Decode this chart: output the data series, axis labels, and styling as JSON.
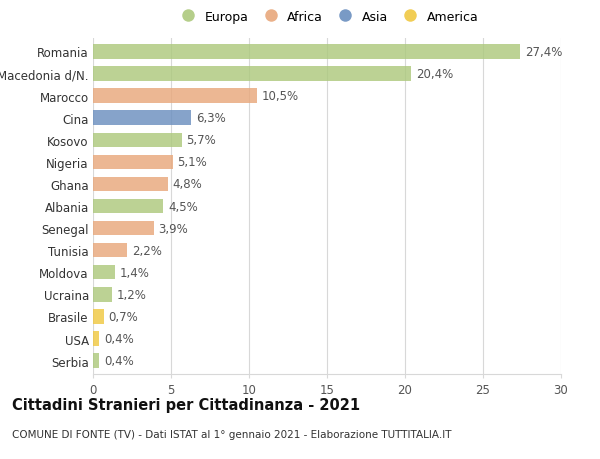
{
  "countries": [
    "Romania",
    "Macedonia d/N.",
    "Marocco",
    "Cina",
    "Kosovo",
    "Nigeria",
    "Ghana",
    "Albania",
    "Senegal",
    "Tunisia",
    "Moldova",
    "Ucraina",
    "Brasile",
    "USA",
    "Serbia"
  ],
  "values": [
    27.4,
    20.4,
    10.5,
    6.3,
    5.7,
    5.1,
    4.8,
    4.5,
    3.9,
    2.2,
    1.4,
    1.2,
    0.7,
    0.4,
    0.4
  ],
  "labels": [
    "27,4%",
    "20,4%",
    "10,5%",
    "6,3%",
    "5,7%",
    "5,1%",
    "4,8%",
    "4,5%",
    "3,9%",
    "2,2%",
    "1,4%",
    "1,2%",
    "0,7%",
    "0,4%",
    "0,4%"
  ],
  "continents": [
    "Europa",
    "Europa",
    "Africa",
    "Asia",
    "Europa",
    "Africa",
    "Africa",
    "Europa",
    "Africa",
    "Africa",
    "Europa",
    "Europa",
    "America",
    "America",
    "Europa"
  ],
  "colors": {
    "Europa": "#adc97d",
    "Africa": "#e8a87c",
    "Asia": "#6b8fbf",
    "America": "#f0c842"
  },
  "legend_order": [
    "Europa",
    "Africa",
    "Asia",
    "America"
  ],
  "title": "Cittadini Stranieri per Cittadinanza - 2021",
  "subtitle": "COMUNE DI FONTE (TV) - Dati ISTAT al 1° gennaio 2021 - Elaborazione TUTTITALIA.IT",
  "xlim": [
    0,
    30
  ],
  "xticks": [
    0,
    5,
    10,
    15,
    20,
    25,
    30
  ],
  "background_color": "#ffffff",
  "grid_color": "#d8d8d8",
  "bar_height": 0.65,
  "label_fontsize": 8.5,
  "tick_fontsize": 8.5,
  "title_fontsize": 10.5,
  "subtitle_fontsize": 7.5
}
